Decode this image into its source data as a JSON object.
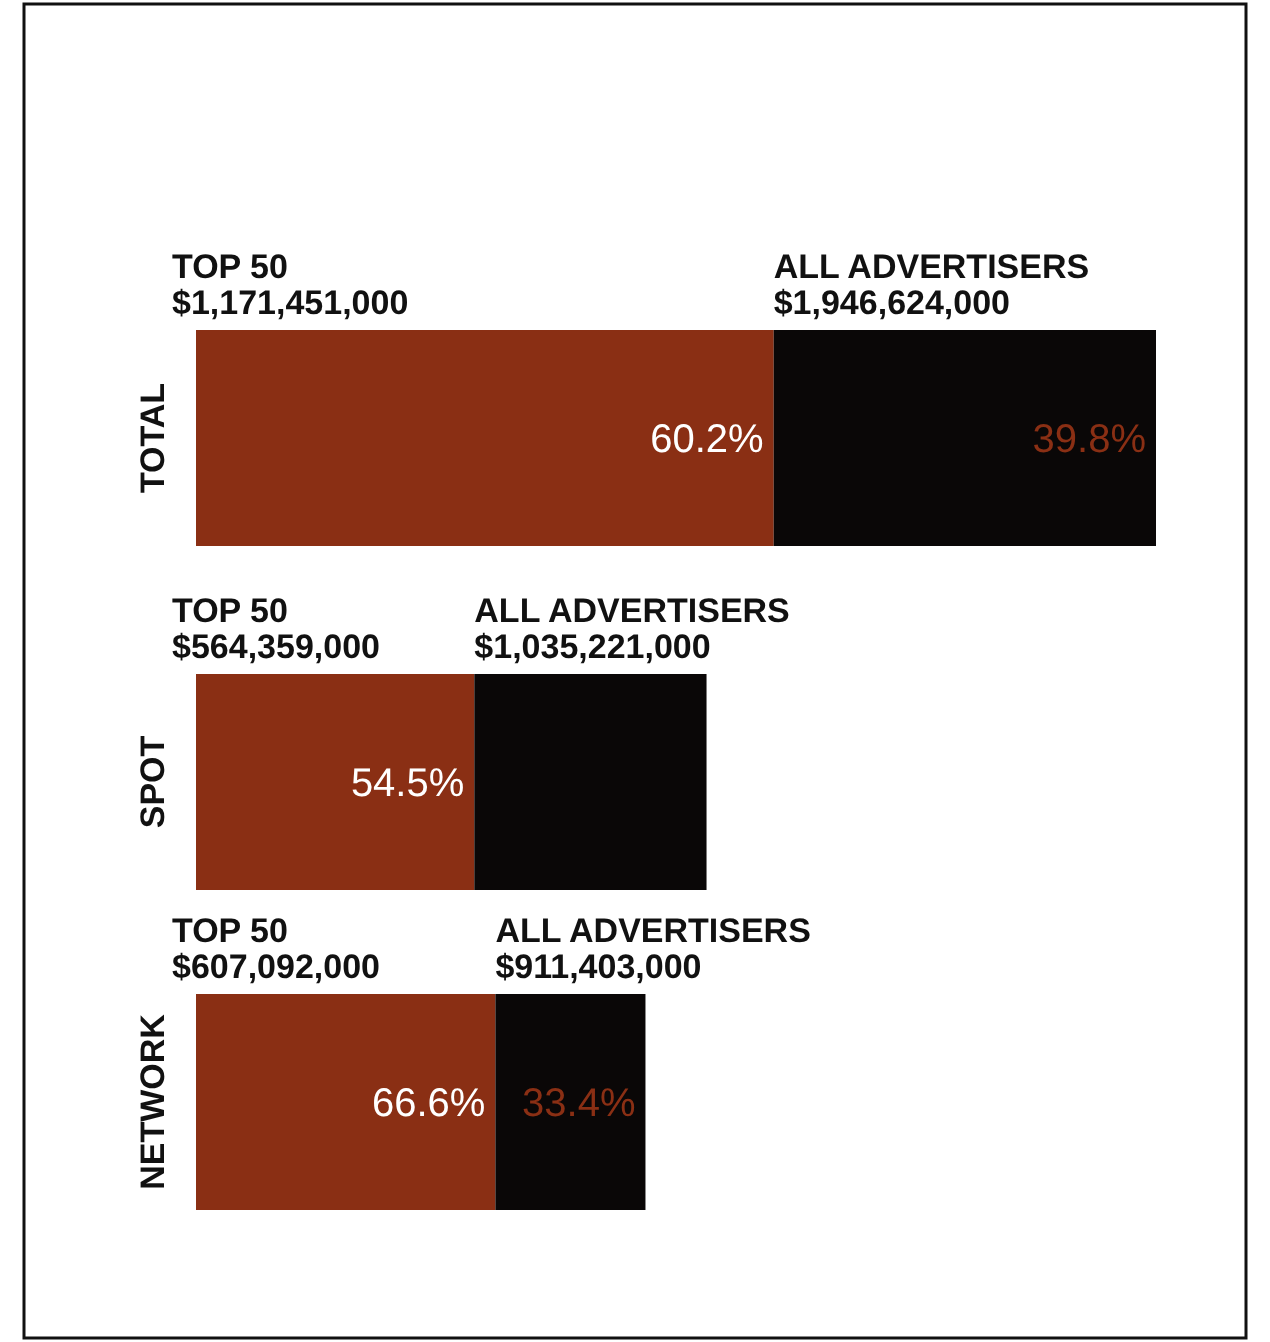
{
  "chart_data": {
    "type": "bar",
    "orientation": "horizontal",
    "stacked": true,
    "categories": [
      "TOTAL",
      "SPOT",
      "NETWORK"
    ],
    "tick_labels": false,
    "series": [
      {
        "color": "#8a2f14",
        "values": [
          1171451000,
          564359000,
          607092000
        ],
        "value_labels": [
          "$1,171,451,000",
          "$564,359,000",
          "$607,092,000"
        ]
      },
      {
        "color": "#0a0707",
        "values": [
          775173000,
          470862000,
          304311000
        ]
      }
    ],
    "totals": [
      "$1,946,624,000",
      "$1,035,221,000",
      "$911,403,000"
    ],
    "annotations": [
      "TOP 50",
      "ALL ADVERTISERS",
      "TOP 50",
      "ALL ADVERTISERS",
      "TOP 50",
      "ALL ADVERTISERS",
      {
        "text": "60.2%",
        "x": 1171451000,
        "y": "TOTAL"
      },
      {
        "text": "39.8%",
        "x": 1946624000,
        "y": "TOTAL"
      },
      {
        "text": "54.5%",
        "x": 564359000,
        "y": "SPOT"
      },
      {
        "text": "66.6%",
        "x": 607092000,
        "y": "NETWORK"
      },
      {
        "text": "33.4%",
        "x": 911403000,
        "y": "NETWORK"
      }
    ]
  }
}
